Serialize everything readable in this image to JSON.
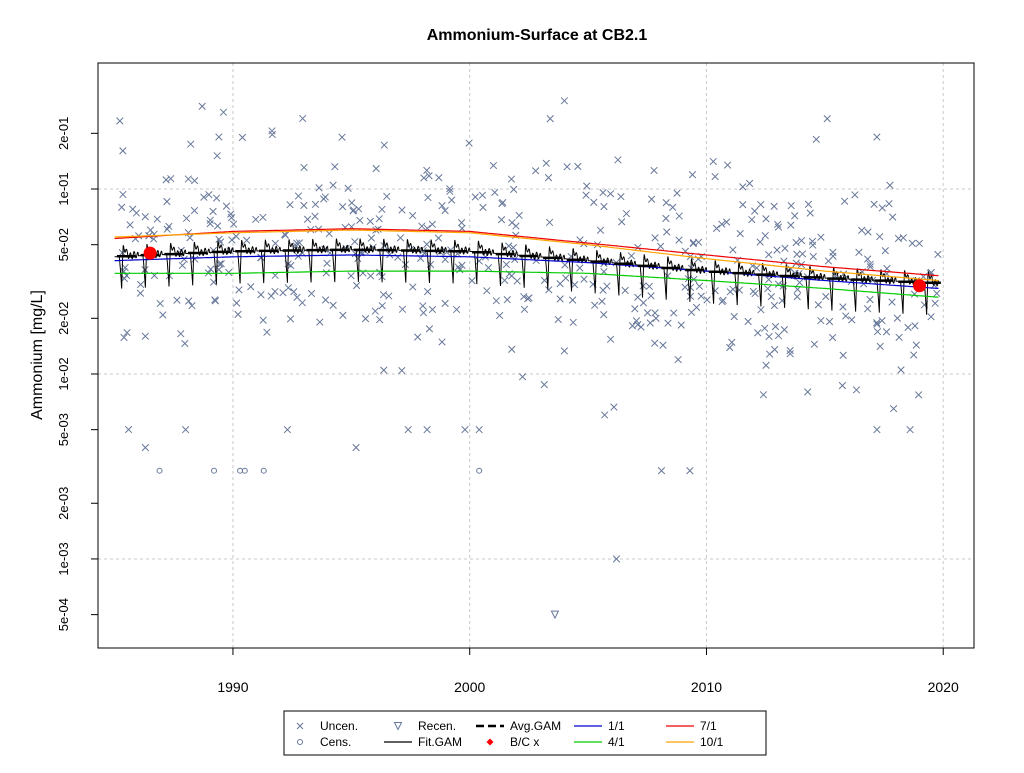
{
  "chart_data": {
    "type": "scatter",
    "title": "Ammonium-Surface at CB2.1",
    "xlabel": "",
    "ylabel": "Ammonium [mg/L]",
    "y_scale": "log",
    "xlim": [
      1984.3,
      2021.3
    ],
    "ylim": [
      0.00033,
      0.48
    ],
    "grid": true,
    "legend_position": "bottom-center",
    "x_ticks": [
      {
        "value": 1990,
        "label": "1990"
      },
      {
        "value": 2000,
        "label": "2000"
      },
      {
        "value": 2010,
        "label": "2010"
      },
      {
        "value": 2020,
        "label": "2020"
      }
    ],
    "y_ticks": [
      {
        "value": 0.0005,
        "label": "5e-04"
      },
      {
        "value": 0.001,
        "label": "1e-03"
      },
      {
        "value": 0.002,
        "label": "2e-03"
      },
      {
        "value": 0.005,
        "label": "5e-03"
      },
      {
        "value": 0.01,
        "label": "1e-02"
      },
      {
        "value": 0.02,
        "label": "2e-02"
      },
      {
        "value": 0.05,
        "label": "5e-02"
      },
      {
        "value": 0.1,
        "label": "1e-01"
      },
      {
        "value": 0.2,
        "label": "2e-01"
      }
    ],
    "colors": {
      "points": "#667799",
      "fit_gam": "#000000",
      "avg_gam": "#000000",
      "bc": "#ff0000",
      "jan1": "#0000cc",
      "apr1": "#00cc00",
      "jul1": "#ee0000",
      "oct1": "#ffa500",
      "grid": "#c8c8c8"
    },
    "legend": [
      {
        "label": "Uncen.",
        "symbol": "x",
        "color": "#667799"
      },
      {
        "label": "Cens.",
        "symbol": "o",
        "color": "#667799"
      },
      {
        "label": "Recen.",
        "symbol": "triangle-down",
        "color": "#667799"
      },
      {
        "label": "Fit.GAM",
        "symbol": "line",
        "color": "#000000"
      },
      {
        "label": "Avg.GAM",
        "symbol": "dash-thick",
        "color": "#000000"
      },
      {
        "label": "B/C x",
        "symbol": "diamond",
        "color": "#ff0000"
      },
      {
        "label": "1/1",
        "symbol": "line",
        "color": "#0000cc"
      },
      {
        "label": "4/1",
        "symbol": "line",
        "color": "#00cc00"
      },
      {
        "label": "7/1",
        "symbol": "line",
        "color": "#ee0000"
      },
      {
        "label": "10/1",
        "symbol": "line",
        "color": "#ffa500"
      }
    ],
    "series": {
      "seasonal_1_1": {
        "name": "1/1",
        "x": [
          1985,
          1990,
          1995,
          2000,
          2005,
          2010,
          2015,
          2019.8
        ],
        "y": [
          0.041,
          0.043,
          0.044,
          0.043,
          0.04,
          0.036,
          0.032,
          0.029
        ]
      },
      "seasonal_4_1": {
        "name": "4/1",
        "x": [
          1985,
          1990,
          1995,
          2000,
          2005,
          2010,
          2015,
          2019.8
        ],
        "y": [
          0.035,
          0.035,
          0.036,
          0.036,
          0.035,
          0.032,
          0.029,
          0.026
        ]
      },
      "seasonal_7_1": {
        "name": "7/1",
        "x": [
          1985,
          1990,
          1995,
          2000,
          2005,
          2010,
          2015,
          2019.8
        ],
        "y": [
          0.054,
          0.059,
          0.061,
          0.059,
          0.051,
          0.044,
          0.038,
          0.034
        ]
      },
      "seasonal_10_1": {
        "name": "10/1",
        "x": [
          1985,
          1990,
          1995,
          2000,
          2005,
          2010,
          2015,
          2019.8
        ],
        "y": [
          0.055,
          0.058,
          0.06,
          0.058,
          0.05,
          0.042,
          0.036,
          0.032
        ]
      },
      "avg_gam": {
        "name": "Avg.GAM",
        "x": [
          1985,
          1990,
          1995,
          2000,
          2005,
          2010,
          2015,
          2019.8
        ],
        "y": [
          0.043,
          0.046,
          0.047,
          0.046,
          0.041,
          0.036,
          0.033,
          0.031
        ]
      },
      "fit_gam": {
        "name": "Fit.GAM",
        "x_start": 1985,
        "x_end": 2019.8,
        "low_factor": 0.67,
        "high_factor": 1.12
      },
      "bc_points": {
        "name": "B/C x",
        "x": [
          1986.5,
          2019.0
        ],
        "y": [
          0.045,
          0.03
        ]
      },
      "censored": {
        "name": "Cens.",
        "x": [
          1986.9,
          1989.2,
          1990.3,
          1990.5,
          1991.3,
          2000.4
        ],
        "y": [
          0.003,
          0.003,
          0.003,
          0.003,
          0.003,
          0.003
        ]
      },
      "recensored": {
        "name": "Recen.",
        "x": [
          2003.6
        ],
        "y": [
          0.0005
        ]
      },
      "uncensored_highlights": {
        "name": "Uncen.",
        "x": [
          1988.7,
          1989.6,
          1990.4,
          2004.0,
          2003.4,
          2015.1,
          2006.2,
          2005.7,
          1986.3,
          1986.3,
          1988.0,
          2000.4,
          1997.4,
          1998.2,
          1999.8,
          1992.3,
          1995.2,
          2008.1,
          2009.3,
          2017.2,
          2018.6
        ],
        "y": [
          0.28,
          0.26,
          0.19,
          0.3,
          0.24,
          0.24,
          0.001,
          0.006,
          0.004,
          0.016,
          0.005,
          0.005,
          0.005,
          0.005,
          0.005,
          0.005,
          0.004,
          0.003,
          0.003,
          0.005,
          0.005
        ]
      },
      "uncensored_generated_count": 520
    }
  }
}
